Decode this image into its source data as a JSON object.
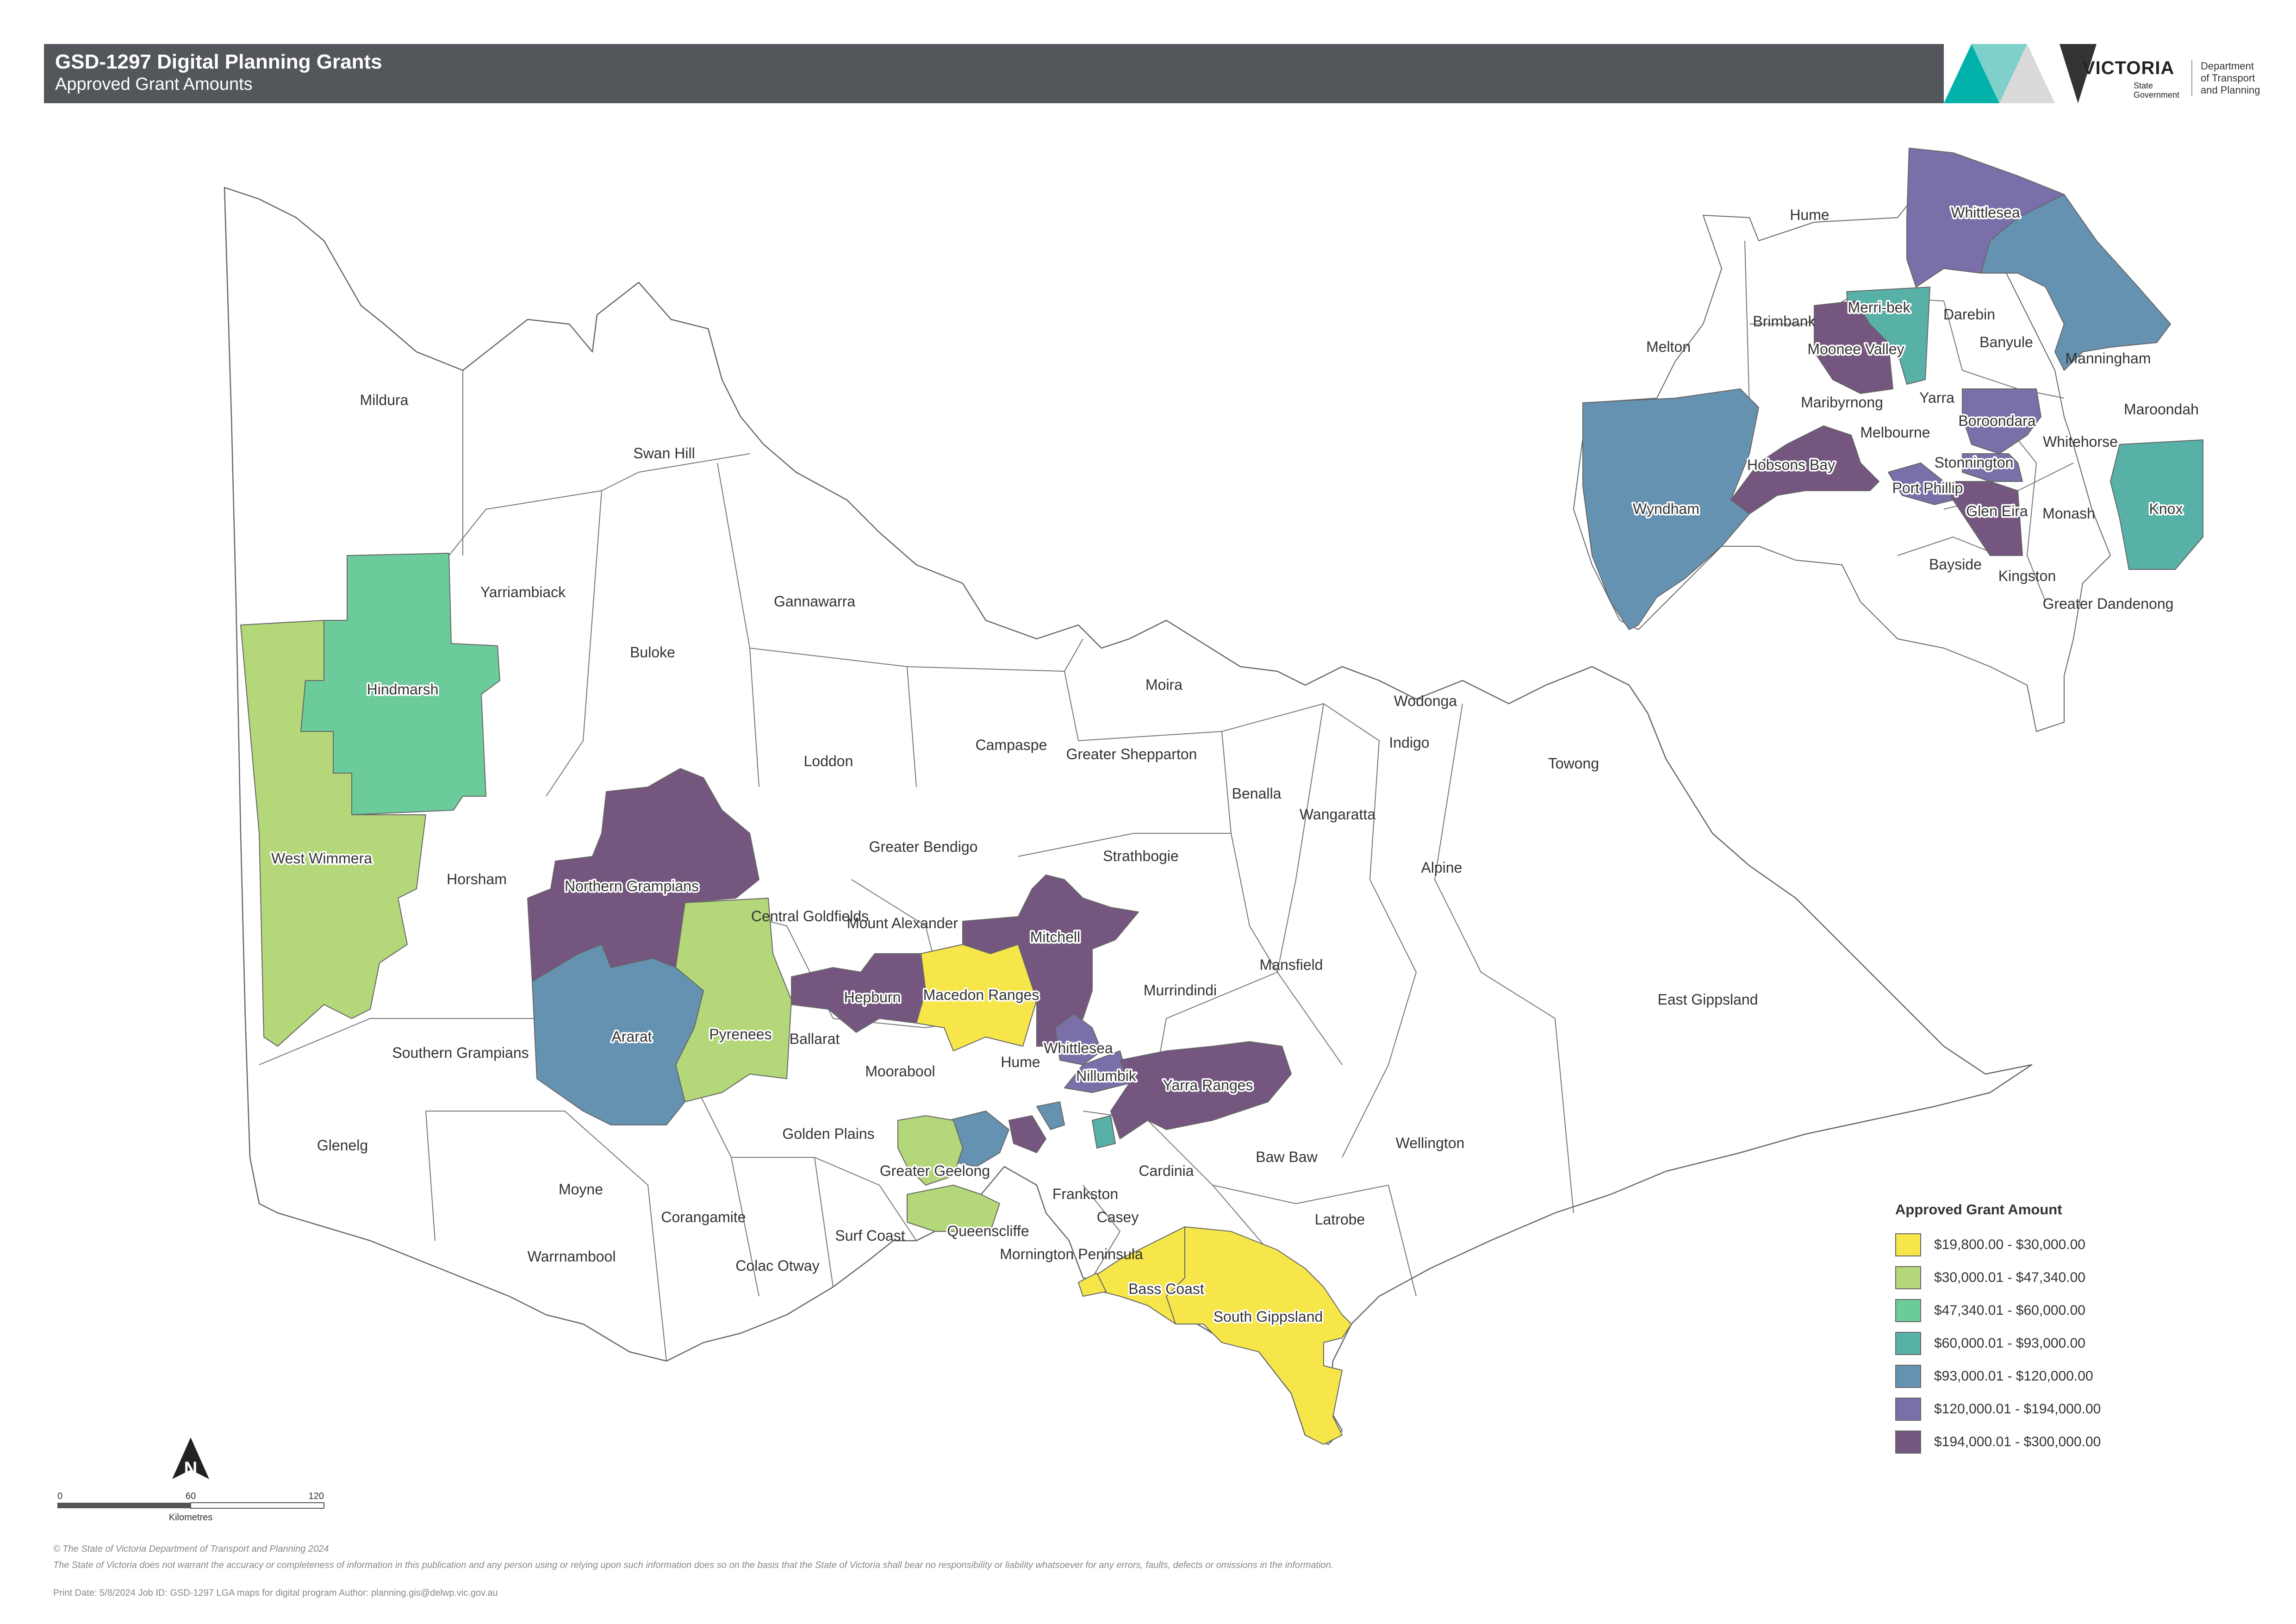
{
  "header": {
    "title": "GSD-1297 Digital Planning Grants",
    "subtitle": "Approved Grant Amounts",
    "logo_word": "VICTORIA",
    "logo_sub": [
      "State",
      "Government"
    ],
    "dept": [
      "Department",
      "of Transport",
      "and Planning"
    ]
  },
  "colors": {
    "tier1": "#f7e64a",
    "tier2": "#b4d77a",
    "tier3": "#6ccb9b",
    "tier4": "#58b1a7",
    "tier5": "#6592b0",
    "tier6": "#7a6fa8",
    "tier7": "#74567f",
    "header_bg": "#53565a"
  },
  "legend": {
    "title": "Approved Grant Amount",
    "items": [
      {
        "label": "$19,800.00 - $30,000.00",
        "color": "#f7e64a"
      },
      {
        "label": "$30,000.01 - $47,340.00",
        "color": "#b4d77a"
      },
      {
        "label": "$47,340.01 - $60,000.00",
        "color": "#6ccb9b"
      },
      {
        "label": "$60,000.01 - $93,000.00",
        "color": "#58b1a7"
      },
      {
        "label": "$93,000.01 - $120,000.00",
        "color": "#6592b0"
      },
      {
        "label": "$120,000.01 - $194,000.00",
        "color": "#7a6fa8"
      },
      {
        "label": "$194,000.01 - $300,000.00",
        "color": "#74567f"
      }
    ]
  },
  "map_labels": {
    "plain": [
      "Mildura",
      "Swan Hill",
      "Yarriambiack",
      "Gannawarra",
      "Buloke",
      "Moira",
      "Wodonga",
      "Indigo",
      "Towong",
      "Loddon",
      "Campaspe",
      "Greater Shepparton",
      "Benalla",
      "Wangaratta",
      "Horsham",
      "Central Goldfields",
      "Greater Bendigo",
      "Strathbogie",
      "Alpine",
      "Mount Alexander",
      "Mansfield",
      "East Gippsland",
      "Murrindindi",
      "Southern Grampians",
      "Ballarat",
      "Moorabool",
      "Hume",
      "Glenelg",
      "Golden Plains",
      "Wellington",
      "Baw Baw",
      "Cardinia",
      "Moyne",
      "Frankston",
      "Casey",
      "Corangamite",
      "Latrobe",
      "Surf Coast",
      "Mornington Peninsula",
      "Warrnambool",
      "Colac Otway"
    ],
    "funded": [
      "Hindmarsh",
      "West Wimmera",
      "Northern Grampians",
      "Pyrenees",
      "Ararat",
      "Hepburn",
      "Mitchell",
      "Macedon Ranges",
      "Whittlesea",
      "Nillumbik",
      "Yarra Ranges",
      "Greater Geelong",
      "Queenscliffe",
      "Bass Coast",
      "South Gippsland"
    ]
  },
  "inset_labels": {
    "plain": [
      "Hume",
      "Melton",
      "Brimbank",
      "Darebin",
      "Banyule",
      "Manningham",
      "Maribyrnong",
      "Yarra",
      "Maroondah",
      "Melbourne",
      "Whitehorse",
      "Monash",
      "Bayside",
      "Kingston",
      "Greater Dandenong"
    ],
    "funded": [
      "Whittlesea",
      "Merri-bek",
      "Moonee Valley",
      "Boroondara",
      "Hobsons Bay",
      "Stonnington",
      "Wyndham",
      "Port Phillip",
      "Glen Eira",
      "Knox"
    ]
  },
  "north_label": "N",
  "scale": {
    "ticks": [
      "0",
      "60",
      "120"
    ],
    "unit": "Kilometres"
  },
  "footer": {
    "copyright": "© The State of Victoria Department of Transport and Planning 2024",
    "disclaimer": "The State of Victoria does not warrant the accuracy or completeness of information in this publication and any person using or relying upon such information does so on the basis that the State of Victoria shall bear no responsibility or liability whatsoever for any errors, faults, defects or omissions in the information.",
    "print_info": "Print Date: 5/8/2024  Job ID: GSD-1297 LGA maps for digital program   Author: planning.gis@delwp.vic.gov.au"
  }
}
